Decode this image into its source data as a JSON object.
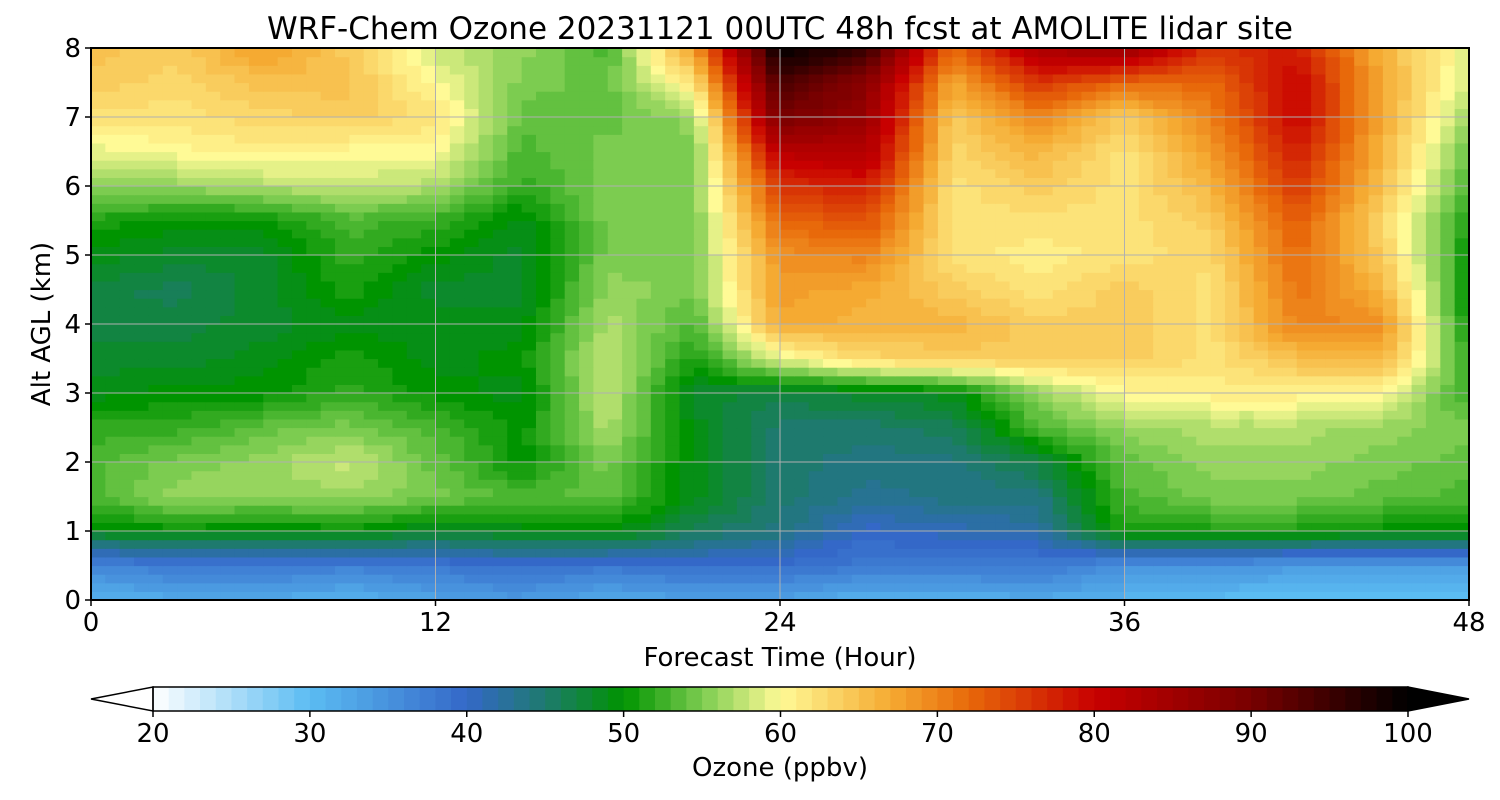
{
  "chart_data": {
    "type": "heatmap",
    "title": "WRF-Chem Ozone  20231121 00UTC 48h fcst at AMOLITE lidar site",
    "xlabel": "Forecast Time (Hour)",
    "ylabel": "Alt AGL (km)",
    "xlim": [
      0,
      48
    ],
    "ylim": [
      0,
      8
    ],
    "x_ticks": [
      0,
      12,
      24,
      36,
      48
    ],
    "y_ticks": [
      0,
      1,
      2,
      3,
      4,
      5,
      6,
      7,
      8
    ],
    "grid": true,
    "colorbar": {
      "label": "Ozone  (ppbv)",
      "range": [
        20,
        100
      ],
      "ticks": [
        20,
        30,
        40,
        50,
        60,
        70,
        80,
        90,
        100
      ],
      "extend": "both",
      "stops": [
        {
          "value": 20,
          "color": "#ffffff"
        },
        {
          "value": 30,
          "color": "#5bbcf2"
        },
        {
          "value": 40,
          "color": "#3468c8"
        },
        {
          "value": 45,
          "color": "#1e7a6e"
        },
        {
          "value": 50,
          "color": "#009400"
        },
        {
          "value": 55,
          "color": "#7ccc50"
        },
        {
          "value": 60,
          "color": "#fffa96"
        },
        {
          "value": 67,
          "color": "#f5aa32"
        },
        {
          "value": 72,
          "color": "#e8690a"
        },
        {
          "value": 80,
          "color": "#c80000"
        },
        {
          "value": 90,
          "color": "#780000"
        },
        {
          "value": 100,
          "color": "#000000"
        }
      ]
    },
    "grid_x": [
      0,
      3,
      6,
      9,
      12,
      15,
      18,
      21,
      24,
      27,
      30,
      33,
      36,
      39,
      42,
      45,
      48
    ],
    "grid_z": [
      0,
      0.5,
      1,
      1.5,
      2,
      2.5,
      3,
      3.5,
      4,
      4.5,
      5,
      5.5,
      6,
      6.5,
      7,
      7.5,
      8
    ],
    "ozone_ppbv": [
      [
        31,
        32,
        32,
        31,
        33,
        34,
        32,
        33,
        33,
        31,
        31,
        32,
        31,
        30,
        29,
        29,
        30
      ],
      [
        36,
        38,
        38,
        37,
        38,
        39,
        38,
        39,
        39,
        38,
        38,
        38,
        35,
        35,
        34,
        34,
        34
      ],
      [
        49,
        50,
        49,
        50,
        48,
        49,
        50,
        46,
        44,
        40,
        41,
        42,
        51,
        51,
        51,
        50,
        50
      ],
      [
        53,
        56,
        56,
        56,
        55,
        53,
        54,
        49,
        45,
        43,
        44,
        44,
        53,
        55,
        55,
        54,
        53
      ],
      [
        53,
        55,
        56,
        58,
        54,
        50,
        55,
        49,
        45,
        44,
        44,
        47,
        54,
        56,
        56,
        55,
        54
      ],
      [
        52,
        52,
        54,
        55,
        53,
        50,
        57,
        49,
        45,
        45,
        46,
        53,
        56,
        57,
        57,
        56,
        55
      ],
      [
        49,
        50,
        50,
        52,
        50,
        49,
        58,
        48,
        47,
        48,
        49,
        56,
        60,
        61,
        61,
        60,
        52
      ],
      [
        48,
        48,
        49,
        51,
        49,
        50,
        58,
        51,
        59,
        63,
        64,
        64,
        64,
        62,
        65,
        66,
        52
      ],
      [
        47,
        47,
        48,
        49,
        49,
        49,
        57,
        53,
        67,
        66,
        66,
        64,
        64,
        62,
        70,
        69,
        50
      ],
      [
        47,
        46,
        48,
        51,
        48,
        48,
        56,
        55,
        68,
        67,
        64,
        62,
        64,
        62,
        71,
        66,
        50
      ],
      [
        49,
        48,
        48,
        52,
        50,
        48,
        55,
        55,
        69,
        70,
        62,
        61,
        62,
        63,
        72,
        64,
        50
      ],
      [
        51,
        50,
        50,
        53,
        52,
        49,
        55,
        55,
        72,
        74,
        62,
        62,
        62,
        64,
        73,
        63,
        51
      ],
      [
        56,
        56,
        57,
        58,
        57,
        52,
        55,
        55,
        76,
        78,
        62,
        64,
        62,
        66,
        76,
        65,
        53
      ],
      [
        59,
        60,
        61,
        60,
        60,
        53,
        55,
        55,
        82,
        83,
        63,
        66,
        62,
        68,
        78,
        66,
        54
      ],
      [
        62,
        62,
        63,
        64,
        62,
        54,
        54,
        56,
        90,
        86,
        64,
        70,
        64,
        70,
        80,
        67,
        56
      ],
      [
        64,
        63,
        65,
        65,
        60,
        55,
        54,
        62,
        94,
        88,
        67,
        76,
        72,
        72,
        80,
        67,
        58
      ],
      [
        65,
        64,
        68,
        64,
        58,
        56,
        53,
        68,
        100,
        96,
        72,
        84,
        86,
        76,
        78,
        66,
        59
      ]
    ]
  }
}
